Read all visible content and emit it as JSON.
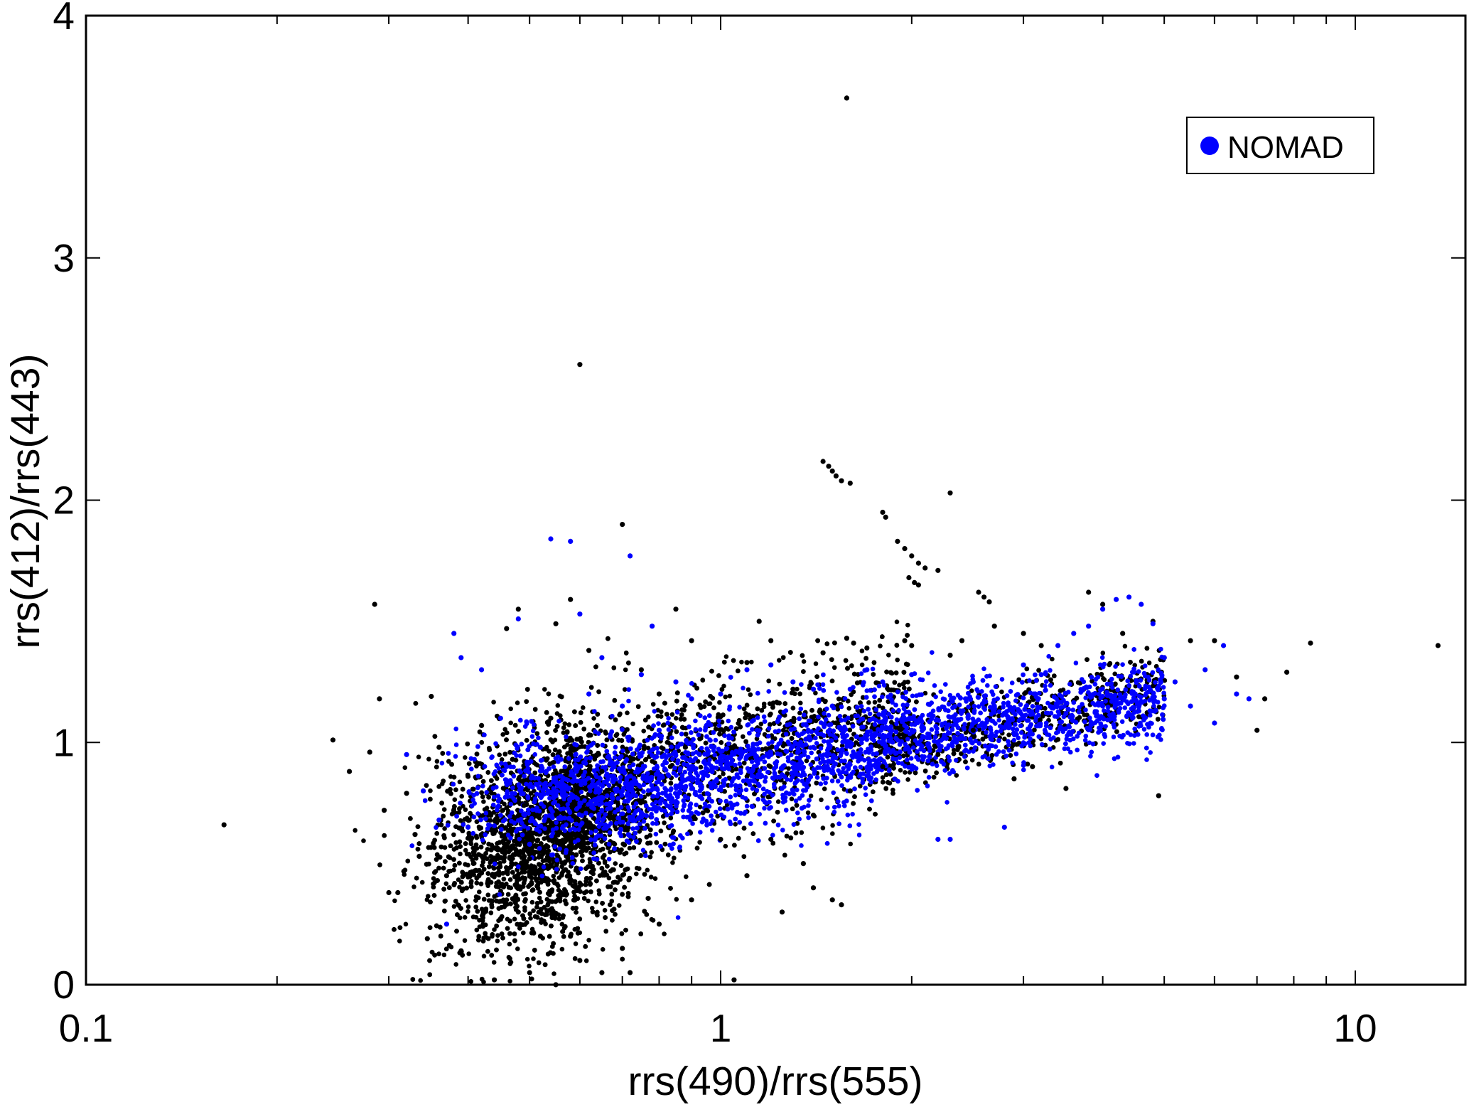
{
  "chart_data": {
    "type": "scatter",
    "xlabel": "rrs(490)/rrs(555)",
    "ylabel": "rrs(412)/rrs(443)",
    "x_scale": "log",
    "xlim": [
      0.1,
      15
    ],
    "ylim": [
      0,
      4
    ],
    "x_tick_labels": [
      {
        "value": 0.1,
        "label": "0.1"
      },
      {
        "value": 1,
        "label": "1"
      },
      {
        "value": 10,
        "label": "10"
      }
    ],
    "y_tick_labels": [
      {
        "value": 0,
        "label": "0"
      },
      {
        "value": 1,
        "label": "1"
      },
      {
        "value": 2,
        "label": "2"
      },
      {
        "value": 3,
        "label": "3"
      },
      {
        "value": 4,
        "label": "4"
      }
    ],
    "grid": false,
    "legend": {
      "position": "top-right",
      "entries": [
        {
          "label": "NOMAD",
          "color": "#0000ff",
          "marker": "filled-circle"
        }
      ]
    },
    "series": [
      {
        "name": "",
        "color": "#000000",
        "note_on_legend": "unlabeled",
        "points": [
          [
            0.165,
            0.66
          ],
          [
            0.245,
            1.01
          ],
          [
            0.26,
            0.88
          ],
          [
            0.28,
            0.96
          ],
          [
            0.285,
            1.57
          ],
          [
            0.29,
            1.18
          ],
          [
            0.295,
            0.72
          ],
          [
            0.3,
            0.38
          ],
          [
            0.31,
            0.38
          ],
          [
            0.32,
            0.79
          ],
          [
            0.33,
            0.62
          ],
          [
            0.335,
            0.53
          ],
          [
            0.345,
            0.19
          ],
          [
            0.35,
            1.19
          ],
          [
            0.36,
            0.98
          ],
          [
            0.37,
            0.45
          ],
          [
            0.39,
            0.14
          ],
          [
            0.4,
            0.86
          ],
          [
            0.41,
            0.47
          ],
          [
            0.42,
            1.07
          ],
          [
            0.44,
            0.02
          ],
          [
            0.45,
            0.27
          ],
          [
            0.46,
            1.47
          ],
          [
            0.47,
            0.93
          ],
          [
            0.48,
            1.55
          ],
          [
            0.49,
            0.74
          ],
          [
            0.5,
            0.52
          ],
          [
            0.52,
            0.2
          ],
          [
            0.54,
            1.1
          ],
          [
            0.55,
            1.49
          ],
          [
            0.56,
            0.38
          ],
          [
            0.58,
            1.59
          ],
          [
            0.6,
            2.56
          ],
          [
            0.62,
            1.38
          ],
          [
            0.65,
            0.88
          ],
          [
            0.7,
            1.9
          ],
          [
            0.72,
            0.05
          ],
          [
            0.75,
            1.3
          ],
          [
            0.8,
            1.2
          ],
          [
            0.85,
            1.55
          ],
          [
            0.88,
            0.98
          ],
          [
            0.9,
            1.42
          ],
          [
            0.95,
            0.72
          ],
          [
            1.0,
            0.6
          ],
          [
            1.05,
            0.02
          ],
          [
            1.1,
            1.33
          ],
          [
            1.15,
            1.5
          ],
          [
            1.2,
            1.42
          ],
          [
            1.25,
            0.3
          ],
          [
            1.3,
            1.22
          ],
          [
            1.35,
            0.5
          ],
          [
            1.4,
            0.4
          ],
          [
            1.45,
            1.37
          ],
          [
            1.5,
            0.35
          ],
          [
            1.55,
            0.33
          ],
          [
            1.58,
            3.66
          ],
          [
            1.45,
            2.16
          ],
          [
            1.48,
            2.14
          ],
          [
            1.5,
            2.12
          ],
          [
            1.52,
            2.1
          ],
          [
            1.55,
            2.08
          ],
          [
            1.6,
            2.07
          ],
          [
            1.8,
            1.95
          ],
          [
            1.82,
            1.93
          ],
          [
            1.9,
            1.83
          ],
          [
            1.95,
            1.8
          ],
          [
            2.0,
            1.77
          ],
          [
            2.05,
            1.74
          ],
          [
            2.1,
            1.72
          ],
          [
            2.2,
            1.71
          ],
          [
            1.98,
            1.68
          ],
          [
            2.02,
            1.66
          ],
          [
            2.05,
            1.65
          ],
          [
            2.3,
            2.03
          ],
          [
            2.55,
            1.62
          ],
          [
            2.6,
            1.6
          ],
          [
            2.65,
            1.58
          ],
          [
            2.7,
            1.48
          ],
          [
            2.4,
            1.42
          ],
          [
            2.3,
            1.36
          ],
          [
            1.58,
            1.43
          ],
          [
            1.62,
            1.41
          ],
          [
            1.7,
            1.39
          ],
          [
            1.95,
            1.42
          ],
          [
            2.0,
            1.4
          ],
          [
            3.0,
            1.45
          ],
          [
            3.2,
            1.4
          ],
          [
            3.5,
            0.81
          ],
          [
            3.8,
            1.62
          ],
          [
            4.0,
            1.57
          ],
          [
            4.3,
            1.45
          ],
          [
            4.8,
            1.5
          ],
          [
            5.0,
            1.35
          ],
          [
            5.5,
            1.42
          ],
          [
            6.0,
            1.42
          ],
          [
            6.5,
            1.27
          ],
          [
            7.0,
            1.05
          ],
          [
            7.2,
            1.18
          ],
          [
            7.8,
            1.29
          ],
          [
            8.5,
            1.41
          ],
          [
            13.5,
            1.4
          ],
          [
            4.9,
            0.78
          ],
          [
            2.9,
            0.85
          ],
          [
            3.1,
            0.9
          ],
          [
            2.5,
            1.05
          ],
          [
            2.2,
            0.95
          ],
          [
            1.8,
            0.9
          ],
          [
            1.6,
            0.8
          ],
          [
            1.4,
            0.7
          ],
          [
            1.2,
            0.6
          ],
          [
            1.1,
            0.45
          ],
          [
            0.9,
            0.35
          ],
          [
            0.8,
            0.25
          ],
          [
            0.7,
            0.15
          ],
          [
            0.65,
            0.05
          ],
          [
            0.6,
            0.1
          ],
          [
            0.58,
            0.2
          ],
          [
            0.55,
            0.0
          ],
          [
            0.5,
            0.05
          ],
          [
            0.48,
            0.3
          ]
        ]
      },
      {
        "name": "NOMAD",
        "color": "#0000ff",
        "points": [
          [
            0.32,
            0.95
          ],
          [
            0.34,
            0.8
          ],
          [
            0.36,
            0.68
          ],
          [
            0.37,
            0.25
          ],
          [
            0.38,
            1.45
          ],
          [
            0.39,
            1.35
          ],
          [
            0.4,
            0.65
          ],
          [
            0.42,
            1.3
          ],
          [
            0.45,
            1.1
          ],
          [
            0.46,
            0.9
          ],
          [
            0.48,
            1.51
          ],
          [
            0.5,
            0.58
          ],
          [
            0.52,
            0.98
          ],
          [
            0.54,
            1.84
          ],
          [
            0.55,
            0.84
          ],
          [
            0.58,
            1.83
          ],
          [
            0.6,
            1.53
          ],
          [
            0.62,
            1.2
          ],
          [
            0.65,
            1.35
          ],
          [
            0.7,
            1.15
          ],
          [
            0.72,
            1.77
          ],
          [
            0.75,
            1.28
          ],
          [
            0.78,
            1.48
          ],
          [
            0.8,
            1.05
          ],
          [
            0.85,
            1.25
          ],
          [
            0.9,
            1.18
          ],
          [
            0.95,
            1.07
          ],
          [
            1.0,
            1.2
          ],
          [
            1.1,
            1.3
          ],
          [
            1.2,
            1.32
          ],
          [
            1.3,
            1.25
          ],
          [
            1.4,
            1.22
          ],
          [
            1.5,
            1.15
          ],
          [
            1.6,
            1.22
          ],
          [
            1.7,
            1.3
          ],
          [
            1.8,
            1.25
          ],
          [
            2.0,
            1.28
          ],
          [
            2.2,
            0.6
          ],
          [
            2.3,
            0.6
          ],
          [
            2.5,
            1.25
          ],
          [
            2.7,
            1.15
          ],
          [
            2.8,
            0.65
          ],
          [
            3.0,
            1.32
          ],
          [
            3.2,
            1.28
          ],
          [
            3.4,
            1.4
          ],
          [
            3.6,
            1.45
          ],
          [
            3.8,
            1.48
          ],
          [
            4.0,
            1.55
          ],
          [
            4.2,
            1.59
          ],
          [
            4.4,
            1.6
          ],
          [
            4.6,
            1.57
          ],
          [
            4.8,
            1.49
          ],
          [
            5.0,
            1.35
          ],
          [
            5.2,
            1.25
          ],
          [
            5.5,
            1.15
          ],
          [
            5.8,
            1.3
          ],
          [
            6.0,
            1.08
          ],
          [
            6.2,
            1.4
          ],
          [
            6.5,
            1.2
          ],
          [
            6.8,
            1.18
          ],
          [
            0.6,
            0.75
          ],
          [
            0.7,
            0.8
          ],
          [
            0.8,
            0.85
          ],
          [
            0.9,
            0.9
          ],
          [
            1.0,
            0.92
          ],
          [
            1.2,
            0.95
          ],
          [
            1.4,
            0.98
          ],
          [
            1.6,
            1.0
          ],
          [
            1.8,
            1.02
          ],
          [
            2.0,
            1.05
          ],
          [
            2.5,
            1.08
          ],
          [
            3.0,
            1.1
          ],
          [
            3.5,
            1.12
          ],
          [
            4.0,
            1.15
          ],
          [
            4.5,
            1.2
          ],
          [
            5.0,
            1.18
          ],
          [
            0.55,
            0.78
          ],
          [
            0.65,
            0.72
          ],
          [
            0.75,
            0.7
          ],
          [
            0.85,
            0.82
          ]
        ]
      }
    ]
  }
}
